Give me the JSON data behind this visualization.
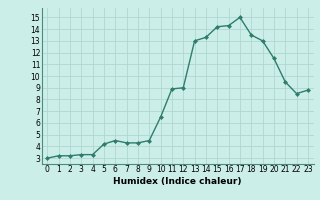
{
  "x": [
    0,
    1,
    2,
    3,
    4,
    5,
    6,
    7,
    8,
    9,
    10,
    11,
    12,
    13,
    14,
    15,
    16,
    17,
    18,
    19,
    20,
    21,
    22,
    23
  ],
  "y": [
    3.0,
    3.2,
    3.2,
    3.3,
    3.3,
    4.2,
    4.5,
    4.3,
    4.3,
    4.5,
    6.5,
    8.9,
    9.0,
    13.0,
    13.3,
    14.2,
    14.3,
    15.0,
    13.5,
    13.0,
    11.5,
    9.5,
    8.5,
    8.8
  ],
  "xlabel": "Humidex (Indice chaleur)",
  "line_color": "#2e7d6e",
  "marker_color": "#2e7d6e",
  "bg_color": "#cceee8",
  "grid_color": "#b0d8d0",
  "ylim": [
    2.5,
    15.8
  ],
  "xlim": [
    -0.5,
    23.5
  ],
  "yticks": [
    3,
    4,
    5,
    6,
    7,
    8,
    9,
    10,
    11,
    12,
    13,
    14,
    15
  ],
  "xticks": [
    0,
    1,
    2,
    3,
    4,
    5,
    6,
    7,
    8,
    9,
    10,
    11,
    12,
    13,
    14,
    15,
    16,
    17,
    18,
    19,
    20,
    21,
    22,
    23
  ],
  "tick_fontsize": 5.5,
  "xlabel_fontsize": 6.5
}
